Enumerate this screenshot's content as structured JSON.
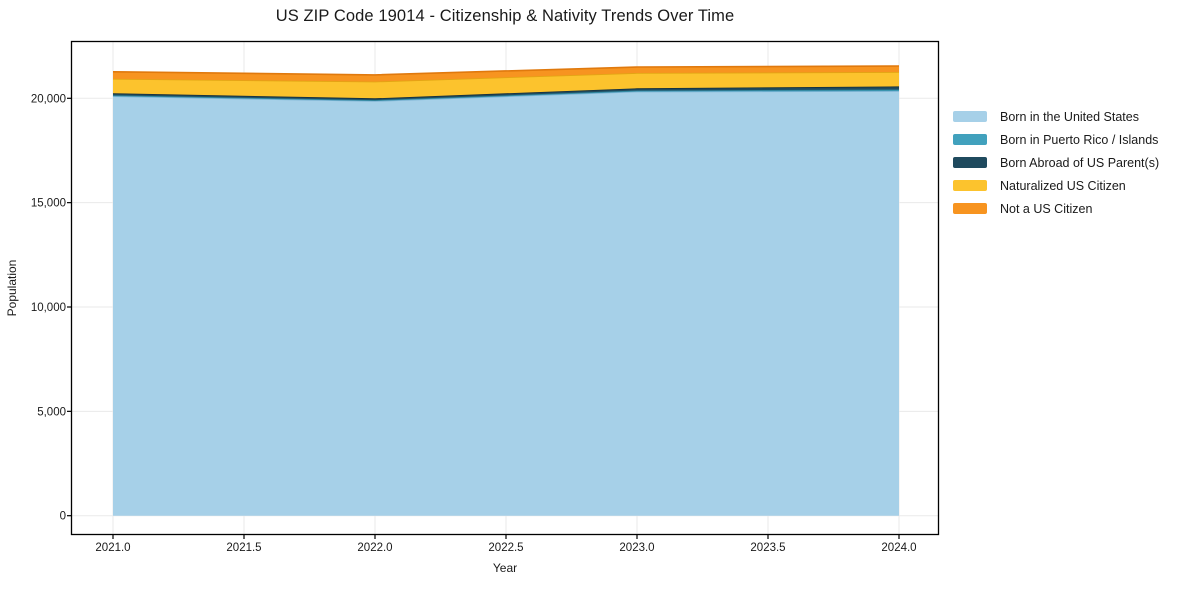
{
  "chart_data": {
    "type": "area",
    "stacked": true,
    "title": "US ZIP Code 19014 - Citizenship & Nativity Trends Over Time",
    "xlabel": "Year",
    "ylabel": "Population",
    "x": [
      2021,
      2022,
      2023,
      2024
    ],
    "series": [
      {
        "name": "Born in the United States",
        "color": "#a6d0e8",
        "edge": "#7eb4d4",
        "values": [
          20100,
          19870,
          20320,
          20350
        ]
      },
      {
        "name": "Born in Puerto Rico / Islands",
        "color": "#41a1bd",
        "edge": "#2f8299",
        "values": [
          50,
          45,
          55,
          70
        ]
      },
      {
        "name": "Born Abroad of US Parent(s)",
        "color": "#1f4a5e",
        "edge": "#152f3d",
        "values": [
          95,
          85,
          105,
          150
        ]
      },
      {
        "name": "Naturalized US Citizen",
        "color": "#fcc32d",
        "edge": "#e2a513",
        "values": [
          690,
          800,
          730,
          690
        ]
      },
      {
        "name": "Not a US Citizen",
        "color": "#f79420",
        "edge": "#e0790d",
        "values": [
          335,
          320,
          290,
          290
        ]
      }
    ],
    "totals": [
      21270,
      21120,
      21500,
      21550
    ],
    "xlim": [
      2020.84,
      2024.16
    ],
    "ylim": [
      -900,
      22700
    ],
    "xticks": {
      "values": [
        2021.0,
        2021.5,
        2022.0,
        2022.5,
        2023.0,
        2023.5,
        2024.0
      ],
      "labels": [
        "2021.0",
        "2021.5",
        "2022.0",
        "2022.5",
        "2023.0",
        "2023.5",
        "2024.0"
      ]
    },
    "yticks": {
      "values": [
        0,
        5000,
        10000,
        15000,
        20000
      ],
      "labels": [
        "0",
        "5,000",
        "10,000",
        "15,000",
        "20,000"
      ]
    },
    "grid": true,
    "legend_position": "right-outside"
  },
  "colors": {
    "background": "#ffffff",
    "grid": "#eaeaea",
    "spine": "#000000",
    "text": "#1a1a1a"
  }
}
